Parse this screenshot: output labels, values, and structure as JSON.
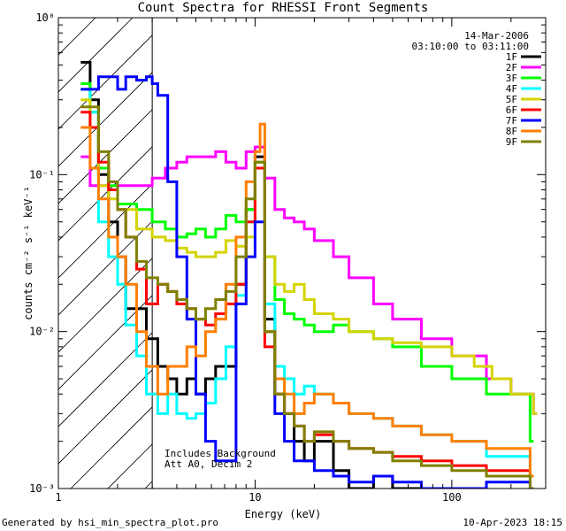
{
  "chart_data": {
    "type": "line",
    "title": "Count Spectra for RHESSI Front Segments",
    "xlabel": "Energy (keV)",
    "ylabel": "counts cm⁻² s⁻¹ keV⁻¹",
    "xscale": "log",
    "yscale": "log",
    "xlim": [
      1,
      300
    ],
    "ylim": [
      0.001,
      1
    ],
    "x_ticks": [
      {
        "value": 1,
        "label": "1"
      },
      {
        "value": 10,
        "label": "10"
      },
      {
        "value": 100,
        "label": "100"
      }
    ],
    "y_ticks": [
      {
        "value": 1,
        "label": "10⁰"
      },
      {
        "value": 0.1,
        "label": "10⁻¹"
      },
      {
        "value": 0.01,
        "label": "10⁻²"
      },
      {
        "value": 0.001,
        "label": "10⁻³"
      }
    ],
    "legend_header": [
      "14-Mar-2006",
      "03:10:00 to 03:11:00"
    ],
    "legend_position": "top-right",
    "annotations": [
      "Includes Background",
      "Att A0, Decim 2"
    ],
    "hatched_region_x": [
      1,
      3
    ],
    "series": [
      {
        "name": "1F",
        "color": "#000000",
        "x": [
          1.3,
          1.45,
          1.6,
          1.8,
          2.0,
          2.2,
          2.5,
          2.8,
          3.2,
          3.6,
          4.0,
          4.5,
          5.0,
          5.6,
          6.3,
          7.1,
          8.0,
          9.0,
          10.0,
          11.2,
          12.6,
          14.1,
          15.8,
          17.8,
          20,
          25,
          30,
          40,
          50,
          60,
          80
        ],
        "y": [
          0.52,
          0.3,
          0.1,
          0.05,
          0.03,
          0.014,
          0.014,
          0.009,
          0.006,
          0.005,
          0.004,
          0.005,
          0.004,
          0.005,
          0.006,
          0.006,
          0.02,
          0.06,
          0.13,
          0.012,
          0.004,
          0.003,
          0.002,
          0.0015,
          0.002,
          0.0013,
          0.001,
          0.0012,
          0.001,
          0.001,
          0.001
        ]
      },
      {
        "name": "2F",
        "color": "#ff00ff",
        "x": [
          1.3,
          1.45,
          1.6,
          1.8,
          2.0,
          2.5,
          3.0,
          3.5,
          4.0,
          4.5,
          5.0,
          5.6,
          6.3,
          7.1,
          8.0,
          9.0,
          10.0,
          11.2,
          12.6,
          14.1,
          15.8,
          17.8,
          20,
          25,
          30,
          40,
          50,
          70,
          100,
          150,
          200,
          260
        ],
        "y": [
          0.13,
          0.085,
          0.085,
          0.09,
          0.085,
          0.085,
          0.095,
          0.11,
          0.12,
          0.13,
          0.13,
          0.13,
          0.14,
          0.12,
          0.11,
          0.14,
          0.15,
          0.095,
          0.06,
          0.053,
          0.05,
          0.045,
          0.038,
          0.03,
          0.022,
          0.015,
          0.012,
          0.009,
          0.007,
          0.005,
          0.004,
          0.003
        ]
      },
      {
        "name": "3F",
        "color": "#00ff00",
        "x": [
          1.3,
          1.45,
          1.6,
          1.8,
          2.0,
          2.5,
          3.0,
          3.5,
          4.0,
          4.5,
          5.0,
          5.6,
          6.3,
          7.1,
          8.0,
          9.0,
          10.0,
          11.2,
          12.6,
          14.1,
          15.8,
          17.8,
          20,
          25,
          30,
          40,
          50,
          70,
          100,
          150,
          250
        ],
        "y": [
          0.38,
          0.25,
          0.11,
          0.085,
          0.065,
          0.06,
          0.05,
          0.045,
          0.04,
          0.042,
          0.045,
          0.04,
          0.045,
          0.055,
          0.05,
          0.06,
          0.12,
          0.03,
          0.016,
          0.013,
          0.012,
          0.011,
          0.01,
          0.011,
          0.01,
          0.009,
          0.008,
          0.006,
          0.005,
          0.004,
          0.002
        ]
      },
      {
        "name": "4F",
        "color": "#00ffff",
        "x": [
          1.3,
          1.45,
          1.6,
          1.8,
          2.0,
          2.2,
          2.5,
          2.8,
          3.2,
          3.6,
          4.0,
          4.5,
          5.0,
          5.6,
          6.3,
          7.1,
          8.0,
          9.0,
          10.0,
          11.2,
          12.6,
          14.1,
          15.8,
          17.8,
          20,
          25,
          30,
          40,
          50,
          70,
          100,
          150,
          250
        ],
        "y": [
          0.35,
          0.25,
          0.05,
          0.03,
          0.02,
          0.011,
          0.007,
          0.004,
          0.003,
          0.004,
          0.003,
          0.0028,
          0.003,
          0.0035,
          0.005,
          0.008,
          0.017,
          0.05,
          0.12,
          0.015,
          0.006,
          0.005,
          0.004,
          0.0045,
          0.004,
          0.0035,
          0.003,
          0.0028,
          0.0025,
          0.0022,
          0.002,
          0.0016,
          0.0012
        ]
      },
      {
        "name": "5F",
        "color": "#d4d400",
        "x": [
          1.3,
          1.45,
          1.6,
          1.8,
          2.0,
          2.5,
          3.0,
          3.5,
          4.0,
          4.5,
          5.0,
          5.6,
          6.3,
          7.1,
          8.0,
          9.0,
          10.0,
          11.2,
          12.6,
          14.1,
          15.8,
          17.8,
          20,
          25,
          30,
          40,
          50,
          70,
          100,
          130,
          160,
          200,
          260
        ],
        "y": [
          0.3,
          0.2,
          0.085,
          0.07,
          0.06,
          0.045,
          0.04,
          0.038,
          0.034,
          0.032,
          0.03,
          0.03,
          0.032,
          0.038,
          0.035,
          0.04,
          0.12,
          0.03,
          0.02,
          0.018,
          0.02,
          0.016,
          0.013,
          0.012,
          0.01,
          0.009,
          0.0085,
          0.008,
          0.007,
          0.006,
          0.005,
          0.004,
          0.003
        ]
      },
      {
        "name": "6F",
        "color": "#ff0000",
        "x": [
          1.3,
          1.45,
          1.6,
          1.8,
          2.0,
          2.2,
          2.5,
          2.8,
          3.2,
          3.6,
          4.0,
          4.5,
          5.0,
          5.6,
          6.3,
          7.1,
          8.0,
          9.0,
          10.0,
          11.2,
          12.6,
          14.1,
          15.8,
          17.8,
          20,
          25,
          30,
          40,
          50,
          70,
          100,
          150,
          250
        ],
        "y": [
          0.25,
          0.2,
          0.12,
          0.08,
          0.06,
          0.04,
          0.025,
          0.015,
          0.02,
          0.018,
          0.015,
          0.014,
          0.012,
          0.011,
          0.013,
          0.015,
          0.02,
          0.05,
          0.11,
          0.008,
          0.004,
          0.003,
          0.0025,
          0.002,
          0.0022,
          0.002,
          0.0018,
          0.0017,
          0.0016,
          0.0015,
          0.0014,
          0.0013,
          0.0012
        ]
      },
      {
        "name": "7F",
        "color": "#0000ff",
        "x": [
          1.3,
          1.45,
          1.6,
          1.8,
          2.0,
          2.2,
          2.5,
          2.8,
          3.0,
          3.2,
          3.6,
          4.0,
          4.5,
          5.0,
          5.6,
          6.3,
          7.1,
          8.0,
          9.0,
          10.0,
          11.2,
          12.6,
          14.1,
          15.8,
          20,
          25,
          30,
          40,
          50,
          70,
          100,
          150,
          250
        ],
        "y": [
          0.35,
          0.35,
          0.42,
          0.42,
          0.35,
          0.42,
          0.4,
          0.42,
          0.38,
          0.32,
          0.09,
          0.03,
          0.012,
          0.004,
          0.002,
          0.0015,
          0.0015,
          0.015,
          0.03,
          0.05,
          0.01,
          0.003,
          0.002,
          0.0015,
          0.0013,
          0.0012,
          0.0011,
          0.0012,
          0.0011,
          0.001,
          0.001,
          0.0011,
          0.001
        ]
      },
      {
        "name": "8F",
        "color": "#ff7f00",
        "x": [
          1.3,
          1.45,
          1.6,
          1.8,
          2.0,
          2.2,
          2.5,
          2.8,
          3.2,
          3.6,
          4.0,
          4.5,
          5.0,
          5.6,
          6.3,
          7.1,
          8.0,
          9.0,
          10.0,
          10.6,
          11.2,
          12.6,
          14.1,
          15.8,
          17.8,
          20,
          25,
          30,
          40,
          50,
          70,
          100,
          150,
          250
        ],
        "y": [
          0.2,
          0.11,
          0.07,
          0.04,
          0.03,
          0.02,
          0.01,
          0.006,
          0.004,
          0.006,
          0.006,
          0.008,
          0.007,
          0.01,
          0.012,
          0.02,
          0.04,
          0.09,
          0.14,
          0.21,
          0.01,
          0.005,
          0.004,
          0.003,
          0.0035,
          0.004,
          0.0035,
          0.003,
          0.0028,
          0.0025,
          0.0022,
          0.002,
          0.0018,
          0.0012
        ]
      },
      {
        "name": "9F",
        "color": "#808000",
        "x": [
          1.3,
          1.45,
          1.6,
          1.8,
          2.0,
          2.2,
          2.5,
          2.8,
          3.2,
          3.6,
          4.0,
          4.5,
          5.0,
          5.6,
          6.3,
          7.1,
          8.0,
          9.0,
          10.0,
          11.2,
          12.6,
          14.1,
          15.8,
          17.8,
          20,
          25,
          30,
          40,
          50,
          70,
          100,
          150,
          250
        ],
        "y": [
          0.27,
          0.27,
          0.14,
          0.09,
          0.06,
          0.04,
          0.028,
          0.022,
          0.02,
          0.018,
          0.016,
          0.014,
          0.012,
          0.014,
          0.016,
          0.018,
          0.03,
          0.07,
          0.12,
          0.01,
          0.004,
          0.003,
          0.0025,
          0.002,
          0.0023,
          0.002,
          0.0018,
          0.0017,
          0.0015,
          0.0014,
          0.0013,
          0.0012,
          0.001
        ]
      }
    ]
  },
  "footer": {
    "generated_by": "Generated by hsi_min_spectra_plot.pro",
    "date": "10-Apr-2023 18:15"
  }
}
